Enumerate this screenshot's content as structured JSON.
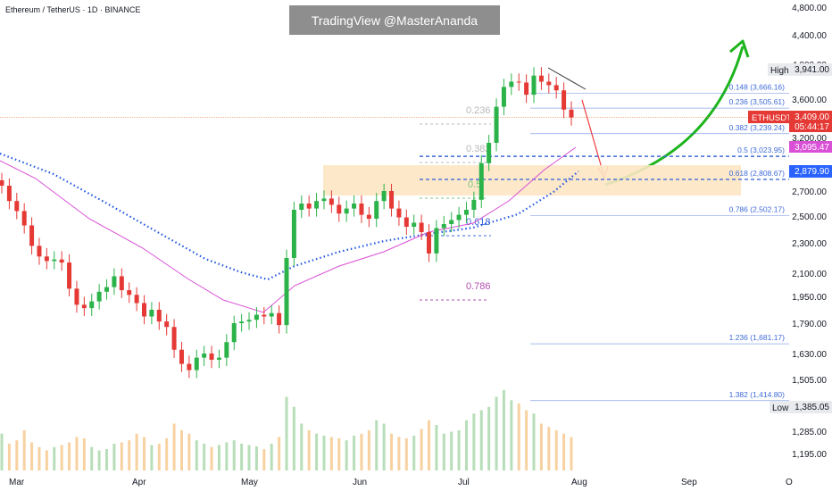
{
  "header": {
    "symbol": "Ethereum / TetherUS · 1D · BINANCE",
    "watermark": "TradingView @MasterAnanda"
  },
  "colors": {
    "up": "#26a69a",
    "up_candle": "#2bb34a",
    "down": "#e53935",
    "volume_up": "#a5d6a7",
    "volume_down": "#f6c58a",
    "ma_dotted": "#1e55e0",
    "ma_pink": "#d94fd6",
    "fib_blue": "#3f6ad8",
    "fib_old": "#c9b7c9",
    "arrow_green": "#1db41d",
    "arrow_red": "#ef3b3b",
    "zone": "#fde6c4",
    "price_tag": "#e53935",
    "ma_tag": "#d94fd6",
    "blue_tag": "#2962ff"
  },
  "price_axis": {
    "ticks": [
      "4,800.00",
      "4,400.00",
      "4,000.00",
      "3,600.00",
      "3,200.00",
      "2,700.00",
      "2,500.00",
      "2,300.00",
      "2,100.00",
      "1,950.00",
      "1,790.00",
      "1,630.00",
      "1,505.00",
      "1,285.00",
      "1,195.00"
    ],
    "high_label": "High",
    "high_value": "3,941.00",
    "low_label": "Low",
    "low_value": "1,385.05",
    "last_symbol": "ETHUSDT",
    "last_price": "3,409.00",
    "countdown": "05:44:17",
    "ma_value": "3,095.47",
    "blue_value": "2,879.90"
  },
  "time_axis": [
    "Mar",
    "Apr",
    "May",
    "Jun",
    "Jul",
    "Aug",
    "Sep",
    "O"
  ],
  "fib_new": [
    {
      "label": "0.148 (3,666.16)"
    },
    {
      "label": "0.236 (3,505.61)"
    },
    {
      "label": "0.382 (3,239.24)"
    },
    {
      "label": "0.5 (3,023.95)"
    },
    {
      "label": "0.618 (2,808.67)"
    },
    {
      "label": "0.786 (2,502.17)"
    },
    {
      "label": "1.236 (1,681.17)"
    },
    {
      "label": "1.382 (1,414.80)"
    }
  ],
  "fib_old": [
    {
      "label": "0.236"
    },
    {
      "label": "0.382"
    },
    {
      "label": "0.5"
    },
    {
      "label": "0.618"
    },
    {
      "label": "0.786"
    }
  ],
  "chart_data": {
    "type": "candlestick",
    "symbol": "ETHUSDT",
    "timeframe": "1D",
    "exchange": "BINANCE",
    "x_labels": [
      "Mar",
      "Apr",
      "May",
      "Jun",
      "Jul",
      "Aug",
      "Sep",
      "O"
    ],
    "ylim": [
      1160,
      4900
    ],
    "annotations": {
      "high": 3941.0,
      "low": 1385.05,
      "last_price": 3409.0,
      "ma_value": 3095.47,
      "blue_ma_value": 2879.9
    },
    "series": [
      {
        "name": "ETHUSDT",
        "values": [
          2750,
          2620,
          2540,
          2430,
          2280,
          2210,
          2180,
          2190,
          2170,
          2000,
          1900,
          1880,
          1920,
          1980,
          2010,
          2080,
          1990,
          1960,
          1910,
          1830,
          1870,
          1800,
          1770,
          1650,
          1580,
          1550,
          1610,
          1630,
          1600,
          1610,
          1690,
          1790,
          1800,
          1810,
          1840,
          1830,
          1850,
          1780,
          2200,
          2550,
          2600,
          2560,
          2620,
          2640,
          2590,
          2520,
          2560,
          2600,
          2510,
          2480,
          2620,
          2700,
          2560,
          2490,
          2420,
          2450,
          2380,
          2230,
          2410,
          2440,
          2470,
          2510,
          2550,
          2630,
          2960,
          3150,
          3520,
          3740,
          3800,
          3790,
          3650,
          3870,
          3800,
          3760,
          3700,
          3490,
          3409
        ]
      }
    ],
    "volume": [
      55,
      40,
      45,
      60,
      42,
      35,
      30,
      35,
      38,
      42,
      50,
      48,
      35,
      30,
      32,
      40,
      42,
      45,
      55,
      50,
      38,
      40,
      48,
      70,
      60,
      55,
      45,
      40,
      35,
      38,
      42,
      45,
      40,
      38,
      36,
      32,
      40,
      50,
      110,
      95,
      70,
      60,
      55,
      52,
      50,
      48,
      45,
      52,
      55,
      60,
      75,
      70,
      55,
      50,
      48,
      52,
      62,
      75,
      68,
      55,
      58,
      60,
      75,
      85,
      90,
      95,
      110,
      120,
      105,
      100,
      90,
      85,
      70,
      65,
      60,
      55,
      50
    ]
  }
}
